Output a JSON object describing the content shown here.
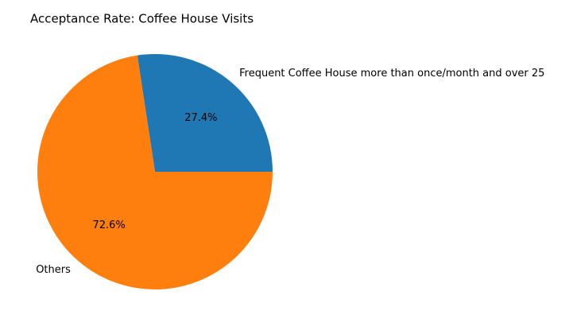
{
  "chart_data": {
    "type": "pie",
    "title": "Acceptance Rate: Coffee House Visits",
    "slices": [
      {
        "label": "Frequent Coffee House more than once/month and over 25",
        "value": 27.4,
        "value_label": "27.4%",
        "color": "#1f77b4"
      },
      {
        "label": "Others",
        "value": 72.6,
        "value_label": "72.6%",
        "color": "#ff7f0e"
      }
    ],
    "start_angle": "0 degrees (3 o'clock), counter-clockwise",
    "legend": "none"
  }
}
